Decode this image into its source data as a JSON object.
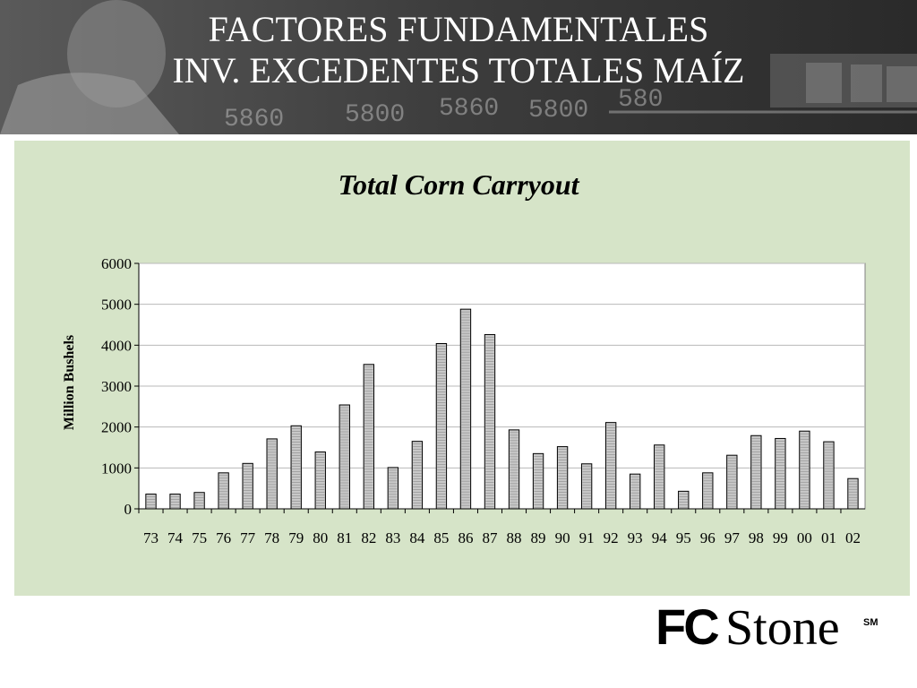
{
  "header": {
    "title_line1": "FACTORES FUNDAMENTALES",
    "title_line2": "INV. EXCEDENTES TOTALES MAÍZ",
    "background_numbers": [
      "5800",
      "5860",
      "5800",
      "5860",
      "580"
    ]
  },
  "chart_data": {
    "type": "bar",
    "title": "Total Corn Carryout",
    "xlabel": "",
    "ylabel": "Million Bushels",
    "ylim": [
      0,
      6000
    ],
    "yticks": [
      0,
      1000,
      2000,
      3000,
      4000,
      5000,
      6000
    ],
    "grid": true,
    "legend": "none",
    "categories": [
      "73",
      "74",
      "75",
      "76",
      "77",
      "78",
      "79",
      "80",
      "81",
      "82",
      "83",
      "84",
      "85",
      "86",
      "87",
      "88",
      "89",
      "90",
      "91",
      "92",
      "93",
      "94",
      "95",
      "96",
      "97",
      "98",
      "99",
      "00",
      "01",
      "02"
    ],
    "values": [
      360,
      360,
      400,
      880,
      1110,
      1710,
      2030,
      1390,
      2540,
      3530,
      1010,
      1650,
      4040,
      4880,
      4260,
      1930,
      1350,
      1520,
      1100,
      2110,
      850,
      1560,
      430,
      880,
      1310,
      1790,
      1720,
      1900,
      1640,
      740
    ],
    "colors": {
      "panel": "#d6e4c8",
      "plot_bg": "#ffffff",
      "bar_fill": "#c8c8c8",
      "bar_stroke": "#000000",
      "grid": "#b8b8b8"
    }
  },
  "logo": {
    "text_fc": "FC",
    "text_stone": "Stone",
    "text_sm": "SM"
  }
}
